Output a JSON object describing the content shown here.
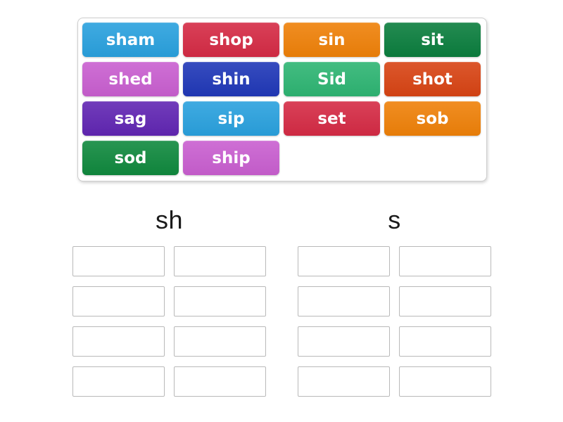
{
  "activity": {
    "type_label": "group-sort",
    "ui_colors": {
      "background": "#ffffff",
      "word_bank_border": "#cfcfcf",
      "slot_border": "#b9b9b9",
      "header_text": "#1b1b1b",
      "tile_text": "#ffffff"
    }
  },
  "word_bank": {
    "tiles": [
      {
        "label": "sham",
        "color": "#2aa1de"
      },
      {
        "label": "shop",
        "color": "#d52b45"
      },
      {
        "label": "sin",
        "color": "#ef8109"
      },
      {
        "label": "sit",
        "color": "#0b7e3e"
      },
      {
        "label": "shed",
        "color": "#c95fd0"
      },
      {
        "label": "shin",
        "color": "#2038b8"
      },
      {
        "label": "Sid",
        "color": "#2eb573"
      },
      {
        "label": "shot",
        "color": "#d84414"
      },
      {
        "label": "sag",
        "color": "#6126b3"
      },
      {
        "label": "sip",
        "color": "#2aa1de"
      },
      {
        "label": "set",
        "color": "#d52b45"
      },
      {
        "label": "sob",
        "color": "#ef8109"
      },
      {
        "label": "sod",
        "color": "#10893e"
      },
      {
        "label": "ship",
        "color": "#c95fd0"
      }
    ]
  },
  "groups": [
    {
      "label": "sh",
      "slot_count": 8
    },
    {
      "label": "s",
      "slot_count": 8
    }
  ]
}
